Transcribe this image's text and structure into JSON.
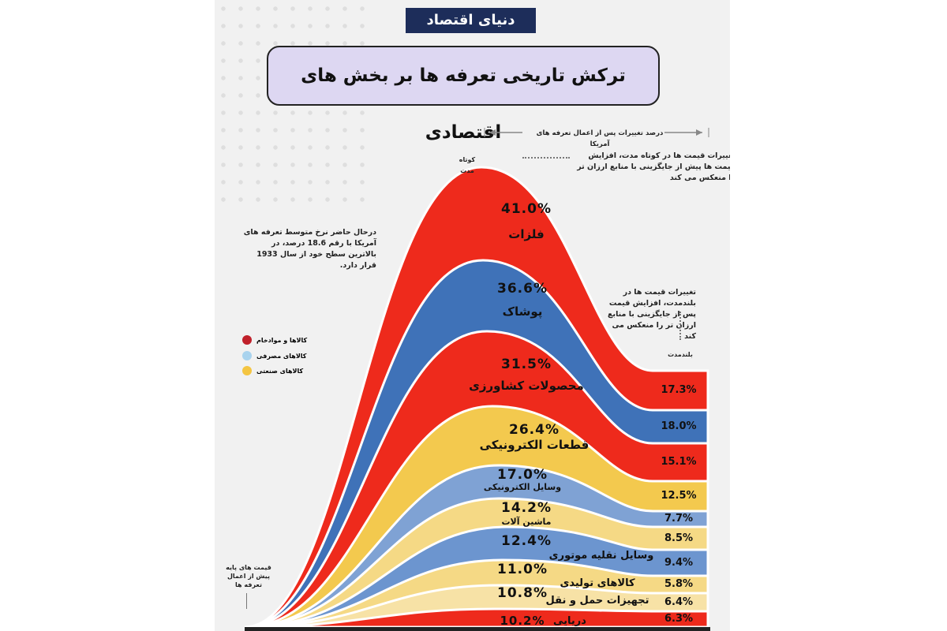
{
  "logo": "دنیای اقتصاد",
  "title": "ترکش تاریخی تعرفه ها بر بخش های اقتصادی",
  "axis_caption": "درصد تغییرات پس از اعمال تعرفه های آمریکا",
  "short_term_label": "کوتاه مدت",
  "long_term_label": "بلندمدت",
  "short_term_note": "تغییرات قیمت ها در کوتاه مدت، افزایش قیمت ها پیش از جایگزینی با منابع ارزان تر را منعکس می کند",
  "long_term_note": "تغییرات قیمت ها در بلندمدت، افزایش قیمت پس از جایگزینی با منابع ارزان تر را منعکس می کند",
  "info_note": "درحال حاضر نرخ متوسط تعرفه های آمریکا با رقم 18.6 درصد، در بالاترین سطح خود از سال 1933 قرار دارد.",
  "baseline_note": "قیمت های پایه پیش از اعمال تعرفه ها",
  "legend": [
    {
      "label": "کالاها و موادخام",
      "color": "#c0202a"
    },
    {
      "label": "کالاهای مصرفی",
      "color": "#a9d3ee"
    },
    {
      "label": "کالاهای صنعتی",
      "color": "#f4c542"
    }
  ],
  "chart_data": {
    "type": "area",
    "categories": [
      "کوتاه مدت",
      "بلندمدت"
    ],
    "series": [
      {
        "name": "فلزات",
        "short_term": "41.0%",
        "long_term": "17.3%",
        "values": [
          41.0,
          17.3
        ],
        "color": "#ee2a1c"
      },
      {
        "name": "پوشاک",
        "short_term": "36.6%",
        "long_term": "18.0%",
        "values": [
          36.6,
          18.0
        ],
        "color": "#3f72b8"
      },
      {
        "name": "محصولات کشاورزی",
        "short_term": "31.5%",
        "long_term": "15.1%",
        "values": [
          31.5,
          15.1
        ],
        "color": "#ee2a1c"
      },
      {
        "name": "قطعات الکترونیکی",
        "short_term": "26.4%",
        "long_term": "12.5%",
        "values": [
          26.4,
          12.5
        ],
        "color": "#f3c94e"
      },
      {
        "name": "وسایل الکترونیکی",
        "short_term": "17.0%",
        "long_term": "7.7%",
        "values": [
          17.0,
          7.7
        ],
        "color": "#7fa2d4"
      },
      {
        "name": "ماشین آلات",
        "short_term": "14.2%",
        "long_term": "8.5%",
        "values": [
          14.2,
          8.5
        ],
        "color": "#f5d985"
      },
      {
        "name": "وسایل نقلیه موتوری",
        "short_term": "12.4%",
        "long_term": "9.4%",
        "values": [
          12.4,
          9.4
        ],
        "color": "#6c95cf"
      },
      {
        "name": "کالاهای تولیدی",
        "short_term": "11.0%",
        "long_term": "5.8%",
        "values": [
          11.0,
          5.8
        ],
        "color": "#f5d985"
      },
      {
        "name": "تجهیزات حمل و نقل",
        "short_term": "10.8%",
        "long_term": "6.4%",
        "values": [
          10.8,
          6.4
        ],
        "color": "#f7e2a6"
      },
      {
        "name": "دریایی",
        "short_term": "10.2%",
        "long_term": "6.3%",
        "values": [
          10.2,
          6.3
        ],
        "color": "#ee2a1c"
      }
    ]
  }
}
